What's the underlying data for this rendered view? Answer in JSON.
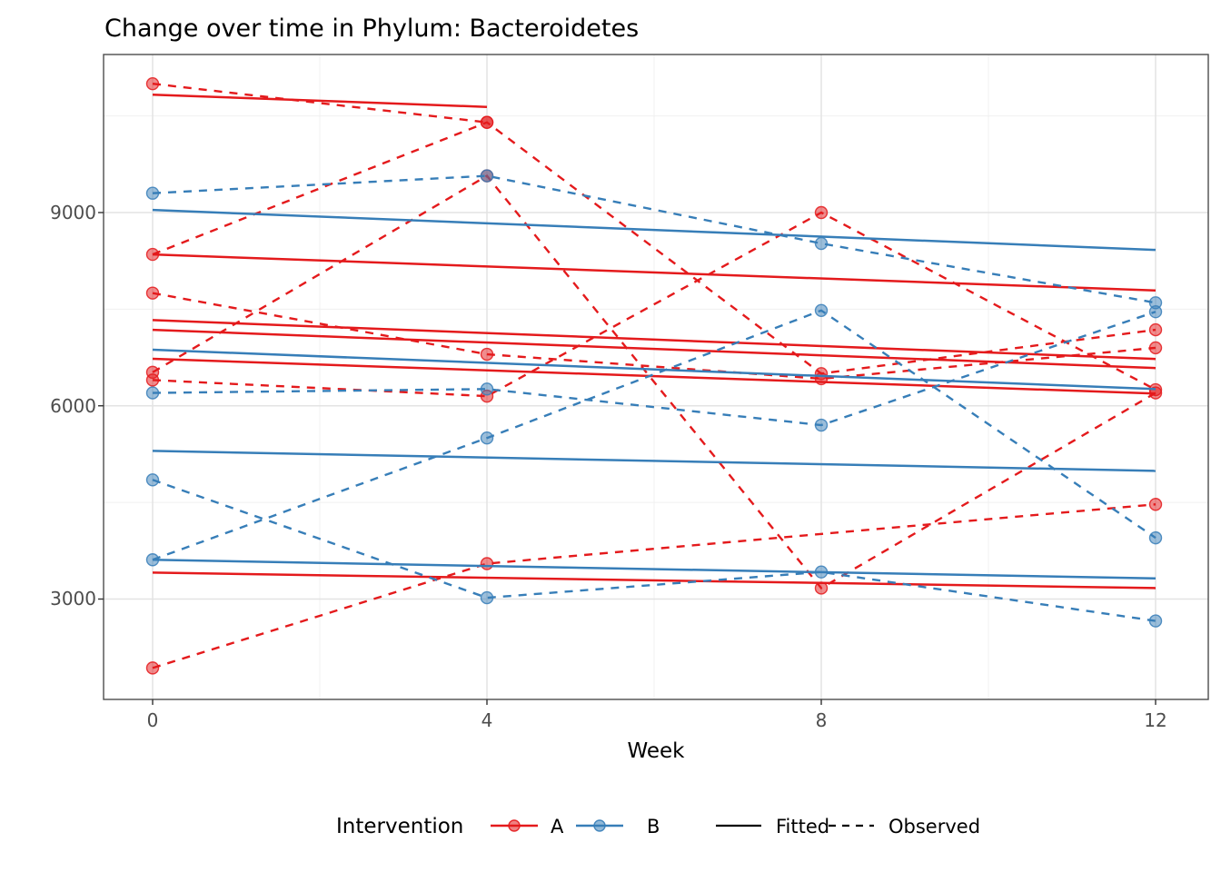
{
  "title": "Change over time in Phylum: Bacteroidetes",
  "axes": {
    "x_title": "Week",
    "x_ticks": [
      "0",
      "4",
      "8",
      "12"
    ],
    "x_tick_weeks": [
      0,
      4,
      8,
      12
    ],
    "x_minor_weeks": [
      2,
      6,
      10
    ],
    "y_ticks": [
      "9000",
      "6000",
      "3000"
    ],
    "y_tick_values": [
      9000,
      6000,
      3000
    ],
    "y_minor_values": [
      10500,
      7500,
      4500
    ]
  },
  "legend": {
    "title": "Intervention",
    "groups": [
      {
        "label": "A",
        "color": "#e41a1c"
      },
      {
        "label": "B",
        "color": "#377eb8"
      }
    ],
    "linetypes": [
      {
        "label": "Fitted",
        "style": "solid"
      },
      {
        "label": "Observed",
        "style": "dashed"
      }
    ]
  },
  "colors": {
    "group_a": "#e41a1c",
    "group_b": "#377eb8",
    "grid_major": "#e3e3e3",
    "grid_minor": "#f0f0f0",
    "panel_border": "#4d4d4d",
    "tick_mark": "#333333",
    "legend_key": "#000000"
  },
  "chart_data": {
    "type": "line",
    "title": "Change over time in Phylum: Bacteroidetes",
    "xlabel": "Week",
    "ylabel": "",
    "x": [
      0,
      4,
      8,
      12
    ],
    "xlim": [
      0,
      12
    ],
    "ylim": [
      1500,
      11400
    ],
    "grid": true,
    "legend_position": "bottom",
    "series": [
      {
        "id": "A1",
        "group": "A",
        "observed": [
          11000,
          10400,
          null,
          null
        ],
        "fitted": {
          "x0": 0,
          "y0": 10830,
          "x1": 4,
          "y1": 10640
        }
      },
      {
        "id": "A2",
        "group": "A",
        "observed": [
          8350,
          10400,
          6500,
          7180
        ],
        "fitted": {
          "x0": 0,
          "y0": 8350,
          "x1": 12,
          "y1": 7790
        }
      },
      {
        "id": "A3",
        "group": "A",
        "observed": [
          7750,
          6800,
          6420,
          6900
        ],
        "fitted": {
          "x0": 0,
          "y0": 7330,
          "x1": 12,
          "y1": 6727
        }
      },
      {
        "id": "A4",
        "group": "A",
        "observed": [
          6520,
          9570,
          3170,
          6200
        ],
        "fitted": {
          "x0": 0,
          "y0": 7180,
          "x1": 12,
          "y1": 6586
        }
      },
      {
        "id": "A5",
        "group": "A",
        "observed": [
          6400,
          6150,
          9000,
          6250
        ],
        "fitted": {
          "x0": 0,
          "y0": 6730,
          "x1": 12,
          "y1": 6190
        }
      },
      {
        "id": "A6",
        "group": "A",
        "observed": [
          1930,
          3550,
          null,
          4470
        ],
        "fitted": {
          "x0": 0,
          "y0": 3410,
          "x1": 12,
          "y1": 3170
        }
      },
      {
        "id": "B1",
        "group": "B",
        "observed": [
          9300,
          9570,
          8520,
          7600
        ],
        "fitted": {
          "x0": 0,
          "y0": 9040,
          "x1": 12,
          "y1": 8420
        }
      },
      {
        "id": "B2",
        "group": "B",
        "observed": [
          6200,
          6260,
          5700,
          7460
        ],
        "fitted": {
          "x0": 0,
          "y0": 6870,
          "x1": 12,
          "y1": 6260
        }
      },
      {
        "id": "B3",
        "group": "B",
        "observed": [
          3610,
          5500,
          7480,
          3950
        ],
        "fitted": {
          "x0": 0,
          "y0": 5300,
          "x1": 12,
          "y1": 4990
        }
      },
      {
        "id": "B4",
        "group": "B",
        "observed": [
          4850,
          3020,
          3420,
          2660
        ],
        "fitted": {
          "x0": 0,
          "y0": 3610,
          "x1": 12,
          "y1": 3320
        }
      }
    ]
  }
}
